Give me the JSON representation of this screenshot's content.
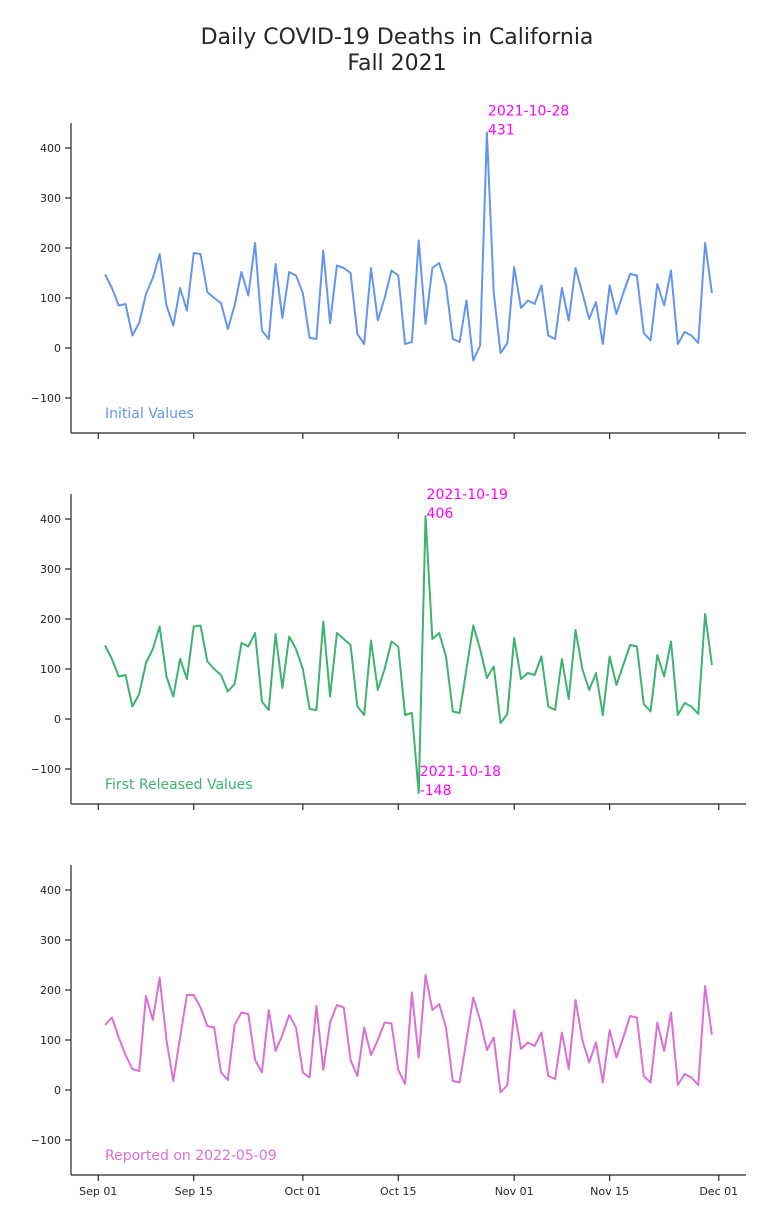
{
  "chart_data": {
    "type": "line",
    "title": "Daily COVID-19 Deaths in California",
    "subtitle": "Fall 2021",
    "x_start": "2021-09-02",
    "x_ticks": [
      {
        "date": "2021-09-01",
        "label": "Sep 01"
      },
      {
        "date": "2021-09-15",
        "label": "Sep 15"
      },
      {
        "date": "2021-10-01",
        "label": "Oct 01"
      },
      {
        "date": "2021-10-15",
        "label": "Oct 15"
      },
      {
        "date": "2021-11-01",
        "label": "Nov 01"
      },
      {
        "date": "2021-11-15",
        "label": "Nov 15"
      },
      {
        "date": "2021-12-01",
        "label": "Dec 01"
      }
    ],
    "xlim": [
      "2021-08-28",
      "2021-12-05"
    ],
    "ylim": [
      -170,
      450
    ],
    "y_ticks": [
      -100,
      0,
      100,
      200,
      300,
      400
    ],
    "panels": [
      {
        "name": "Initial Values",
        "color": "#6495ed",
        "values": [
          147,
          120,
          85,
          88,
          25,
          50,
          108,
          140,
          188,
          85,
          45,
          120,
          75,
          190,
          188,
          112,
          100,
          90,
          38,
          85,
          152,
          105,
          210,
          35,
          18,
          168,
          60,
          152,
          145,
          110,
          20,
          18,
          195,
          50,
          165,
          160,
          150,
          28,
          8,
          160,
          55,
          100,
          155,
          145,
          8,
          12,
          215,
          48,
          160,
          170,
          125,
          18,
          12,
          95,
          -25,
          5,
          431,
          110,
          -10,
          10,
          162,
          80,
          95,
          88,
          125,
          25,
          18,
          120,
          55,
          160,
          110,
          58,
          92,
          8,
          125,
          68,
          110,
          148,
          145,
          30,
          15,
          128,
          85,
          155,
          8,
          32,
          25,
          10,
          210,
          110
        ],
        "annotations": [
          {
            "date": "2021-10-28",
            "value": 431,
            "label_date": "2021-10-28",
            "label_value": "431"
          }
        ]
      },
      {
        "name": "First Released Values",
        "color": "#3cb371",
        "values": [
          147,
          120,
          85,
          88,
          25,
          50,
          112,
          140,
          185,
          85,
          45,
          120,
          80,
          185,
          187,
          115,
          100,
          88,
          55,
          70,
          152,
          145,
          172,
          35,
          18,
          170,
          62,
          165,
          140,
          100,
          20,
          18,
          195,
          45,
          172,
          160,
          148,
          25,
          8,
          157,
          58,
          100,
          155,
          145,
          8,
          12,
          -148,
          406,
          160,
          172,
          125,
          15,
          12,
          100,
          187,
          140,
          82,
          105,
          -8,
          10,
          162,
          80,
          92,
          88,
          125,
          25,
          18,
          120,
          40,
          178,
          100,
          58,
          92,
          8,
          125,
          68,
          108,
          148,
          145,
          30,
          15,
          128,
          85,
          155,
          8,
          32,
          25,
          10,
          210,
          108
        ],
        "annotations": [
          {
            "date": "2021-10-19",
            "value": 406,
            "label_date": "2021-10-19",
            "label_value": "406"
          },
          {
            "date": "2021-10-18",
            "value": -148,
            "label_date": "2021-10-18",
            "label_value": "-148"
          }
        ]
      },
      {
        "name": "Reported on 2022-05-09",
        "color": "#da70d6",
        "values": [
          130,
          145,
          105,
          70,
          42,
          38,
          188,
          140,
          225,
          100,
          18,
          105,
          190,
          190,
          165,
          128,
          125,
          35,
          20,
          130,
          155,
          152,
          60,
          35,
          160,
          78,
          110,
          150,
          125,
          35,
          25,
          168,
          40,
          135,
          170,
          165,
          60,
          28,
          125,
          70,
          100,
          135,
          133,
          40,
          12,
          195,
          65,
          230,
          160,
          172,
          125,
          18,
          15,
          100,
          185,
          140,
          80,
          105,
          -5,
          10,
          160,
          82,
          95,
          88,
          115,
          28,
          22,
          115,
          42,
          180,
          100,
          55,
          95,
          15,
          120,
          65,
          105,
          148,
          145,
          28,
          15,
          135,
          78,
          155,
          10,
          32,
          25,
          10,
          208,
          110
        ],
        "annotations": []
      }
    ]
  }
}
